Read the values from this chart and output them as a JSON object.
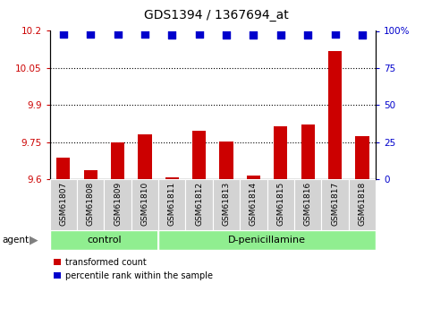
{
  "title": "GDS1394 / 1367694_at",
  "samples": [
    "GSM61807",
    "GSM61808",
    "GSM61809",
    "GSM61810",
    "GSM61811",
    "GSM61812",
    "GSM61813",
    "GSM61814",
    "GSM61815",
    "GSM61816",
    "GSM61817",
    "GSM61818"
  ],
  "red_values": [
    9.687,
    9.635,
    9.748,
    9.782,
    9.608,
    9.797,
    9.752,
    9.614,
    9.815,
    9.82,
    10.12,
    9.775
  ],
  "blue_values": [
    98,
    98,
    98,
    98,
    97,
    98,
    97,
    97,
    97,
    97,
    98,
    97
  ],
  "ylim_left": [
    9.6,
    10.2
  ],
  "ylim_right": [
    0,
    100
  ],
  "yticks_left": [
    9.6,
    9.75,
    9.9,
    10.05,
    10.2
  ],
  "yticks_right": [
    0,
    25,
    50,
    75,
    100
  ],
  "ytick_labels_left": [
    "9.6",
    "9.75",
    "9.9",
    "10.05",
    "10.2"
  ],
  "ytick_labels_right": [
    "0",
    "25",
    "50",
    "75",
    "100%"
  ],
  "grid_values": [
    9.75,
    9.9,
    10.05
  ],
  "control_count": 4,
  "control_label": "control",
  "treatment_label": "D-penicillamine",
  "agent_label": "agent",
  "legend_red": "transformed count",
  "legend_blue": "percentile rank within the sample",
  "bar_color": "#cc0000",
  "dot_color": "#0000cc",
  "group_bg": "#90ee90",
  "sample_box_bg": "#d3d3d3",
  "tick_label_color_left": "#cc0000",
  "tick_label_color_right": "#0000cc",
  "bar_width": 0.5,
  "dot_size": 30,
  "figsize": [
    4.83,
    3.45
  ],
  "dpi": 100
}
